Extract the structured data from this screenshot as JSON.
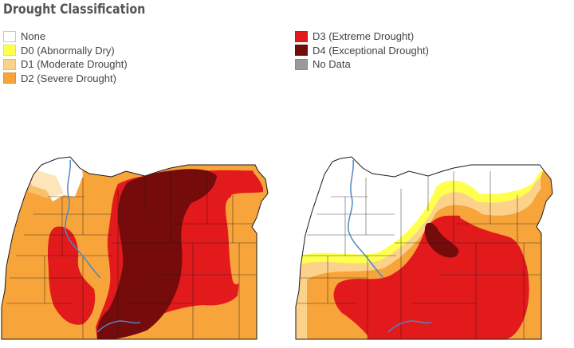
{
  "title": "Drought Classification",
  "legend": [
    {
      "key": "none",
      "label": "None",
      "color": "#ffffff"
    },
    {
      "key": "d0",
      "label": "D0 (Abnormally Dry)",
      "color": "#ffff4d"
    },
    {
      "key": "d1",
      "label": "D1 (Moderate Drought)",
      "color": "#fcd28b"
    },
    {
      "key": "d2",
      "label": "D2 (Severe Drought)",
      "color": "#f7a43a"
    },
    {
      "key": "d3",
      "label": "D3 (Extreme Drought)",
      "color": "#e31a1c"
    },
    {
      "key": "d4",
      "label": "D4 (Exceptional Drought)",
      "color": "#750b0b"
    },
    {
      "key": "nodata",
      "label": "No Data",
      "color": "#9a9a9a"
    }
  ],
  "colors": {
    "none": "#ffffff",
    "d0": "#ffff4d",
    "d1": "#fcd28b",
    "d2": "#f7a43a",
    "d3": "#e31a1c",
    "d4": "#750b0b",
    "county_line": "#1a1a1a",
    "river": "#4f86c6"
  },
  "maps": [
    {
      "name": "oregon-map-left",
      "region": "Oregon"
    },
    {
      "name": "oregon-map-right",
      "region": "Oregon"
    }
  ]
}
